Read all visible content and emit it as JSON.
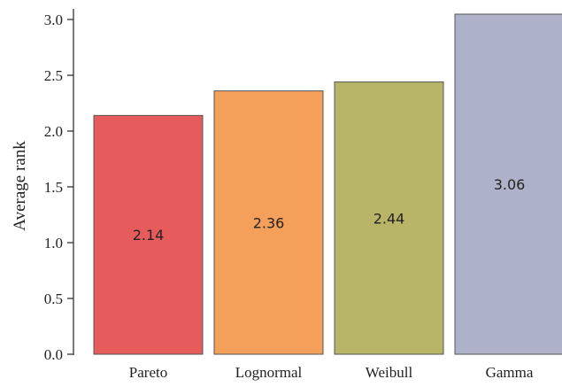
{
  "chart_data": {
    "type": "bar",
    "title": "",
    "xlabel": "",
    "ylabel": "Average rank",
    "categories": [
      "Pareto",
      "Lognormal",
      "Weibull",
      "Gamma"
    ],
    "values": [
      2.14,
      2.36,
      2.44,
      3.06
    ],
    "value_labels": [
      "2.14",
      "2.36",
      "2.44",
      "3.06"
    ],
    "colors": [
      "#e65c5c",
      "#f5a05a",
      "#b8b468",
      "#aeb2c8"
    ],
    "ylim": [
      0,
      3.0
    ],
    "yticks": [
      0.0,
      0.5,
      1.0,
      1.5,
      2.0,
      2.5,
      3.0
    ],
    "ytick_labels": [
      "0.0",
      "0.5",
      "1.0",
      "1.5",
      "2.0",
      "2.5",
      "3.0"
    ],
    "grid": false,
    "legend": "none"
  }
}
